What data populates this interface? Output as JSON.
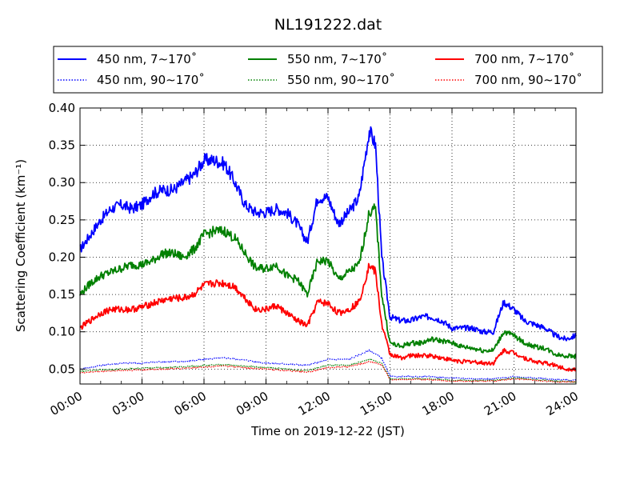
{
  "chart_data": {
    "type": "line",
    "title": "NL191222.dat",
    "xlabel": "Time on 2019-12-22 (JST)",
    "ylabel": "Scattering Coefficient (km⁻¹)",
    "x_tick_labels": [
      "00:00",
      "03:00",
      "06:00",
      "09:00",
      "12:00",
      "15:00",
      "18:00",
      "21:00",
      "24:00"
    ],
    "x_tick_hours": [
      0,
      3,
      6,
      9,
      12,
      15,
      18,
      21,
      24
    ],
    "y_tick_labels": [
      "0.05",
      "0.10",
      "0.15",
      "0.20",
      "0.25",
      "0.30",
      "0.35",
      "0.40"
    ],
    "xlim": [
      0,
      24
    ],
    "ylim": [
      0.03,
      0.4
    ],
    "grid": true,
    "legend_position": "top",
    "series": [
      {
        "name": "450 nm, 7∼170˚",
        "color": "#0000ff",
        "style": "solid",
        "x": [
          0,
          0.5,
          1,
          1.5,
          2,
          2.5,
          3,
          3.5,
          4,
          4.5,
          5,
          5.5,
          6,
          6.5,
          7,
          7.5,
          8,
          8.5,
          9,
          9.5,
          10,
          10.5,
          11,
          11.5,
          12,
          12.5,
          13,
          13.5,
          14,
          14.3,
          14.6,
          15,
          15.5,
          16,
          16.5,
          17,
          17.5,
          18,
          18.5,
          19,
          19.5,
          20,
          20.5,
          21,
          21.5,
          22,
          22.5,
          23,
          23.5,
          24
        ],
        "y": [
          0.21,
          0.23,
          0.25,
          0.265,
          0.27,
          0.265,
          0.27,
          0.285,
          0.29,
          0.29,
          0.3,
          0.31,
          0.33,
          0.33,
          0.325,
          0.3,
          0.27,
          0.26,
          0.26,
          0.265,
          0.26,
          0.245,
          0.22,
          0.28,
          0.28,
          0.245,
          0.26,
          0.28,
          0.37,
          0.35,
          0.2,
          0.12,
          0.115,
          0.115,
          0.12,
          0.12,
          0.115,
          0.105,
          0.105,
          0.105,
          0.1,
          0.1,
          0.14,
          0.13,
          0.115,
          0.11,
          0.105,
          0.095,
          0.09,
          0.095
        ]
      },
      {
        "name": "450 nm, 90∼170˚",
        "color": "#0000ff",
        "style": "dotted",
        "x": [
          0,
          1,
          2,
          3,
          4,
          5,
          6,
          7,
          8,
          9,
          10,
          11,
          12,
          13,
          14,
          14.6,
          15,
          16,
          17,
          18,
          19,
          20,
          21,
          22,
          23,
          24
        ],
        "y": [
          0.05,
          0.055,
          0.058,
          0.058,
          0.06,
          0.06,
          0.063,
          0.065,
          0.062,
          0.058,
          0.057,
          0.055,
          0.063,
          0.063,
          0.075,
          0.065,
          0.04,
          0.04,
          0.04,
          0.038,
          0.037,
          0.037,
          0.04,
          0.038,
          0.036,
          0.035
        ]
      },
      {
        "name": "550 nm, 7∼170˚",
        "color": "#008000",
        "style": "solid",
        "x": [
          0,
          0.5,
          1,
          1.5,
          2,
          2.5,
          3,
          3.5,
          4,
          4.5,
          5,
          5.5,
          6,
          6.5,
          7,
          7.5,
          8,
          8.5,
          9,
          9.5,
          10,
          10.5,
          11,
          11.5,
          12,
          12.5,
          13,
          13.5,
          14,
          14.3,
          14.6,
          15,
          15.5,
          16,
          16.5,
          17,
          17.5,
          18,
          18.5,
          19,
          19.5,
          20,
          20.5,
          21,
          21.5,
          22,
          22.5,
          23,
          23.5,
          24
        ],
        "y": [
          0.15,
          0.165,
          0.175,
          0.18,
          0.185,
          0.19,
          0.19,
          0.195,
          0.205,
          0.205,
          0.2,
          0.21,
          0.23,
          0.235,
          0.235,
          0.225,
          0.205,
          0.185,
          0.185,
          0.19,
          0.175,
          0.17,
          0.15,
          0.195,
          0.195,
          0.17,
          0.18,
          0.19,
          0.26,
          0.265,
          0.15,
          0.085,
          0.08,
          0.085,
          0.085,
          0.09,
          0.088,
          0.085,
          0.08,
          0.078,
          0.075,
          0.075,
          0.1,
          0.095,
          0.085,
          0.08,
          0.078,
          0.07,
          0.068,
          0.067
        ]
      },
      {
        "name": "550 nm, 90∼170˚",
        "color": "#008000",
        "style": "dotted",
        "x": [
          0,
          1,
          2,
          3,
          4,
          5,
          6,
          7,
          8,
          9,
          10,
          11,
          12,
          13,
          14,
          14.6,
          15,
          16,
          17,
          18,
          19,
          20,
          21,
          22,
          23,
          24
        ],
        "y": [
          0.047,
          0.049,
          0.05,
          0.051,
          0.052,
          0.053,
          0.055,
          0.056,
          0.054,
          0.052,
          0.05,
          0.048,
          0.055,
          0.055,
          0.063,
          0.058,
          0.037,
          0.037,
          0.037,
          0.035,
          0.035,
          0.035,
          0.038,
          0.036,
          0.034,
          0.033
        ]
      },
      {
        "name": "700 nm, 7∼170˚",
        "color": "#ff0000",
        "style": "solid",
        "x": [
          0,
          0.5,
          1,
          1.5,
          2,
          2.5,
          3,
          3.5,
          4,
          4.5,
          5,
          5.5,
          6,
          6.5,
          7,
          7.5,
          8,
          8.5,
          9,
          9.5,
          10,
          10.5,
          11,
          11.5,
          12,
          12.5,
          13,
          13.5,
          14,
          14.3,
          14.6,
          15,
          15.5,
          16,
          16.5,
          17,
          17.5,
          18,
          18.5,
          19,
          19.5,
          20,
          20.5,
          21,
          21.5,
          22,
          22.5,
          23,
          23.5,
          24
        ],
        "y": [
          0.105,
          0.115,
          0.125,
          0.13,
          0.13,
          0.13,
          0.133,
          0.138,
          0.142,
          0.145,
          0.145,
          0.15,
          0.162,
          0.165,
          0.165,
          0.16,
          0.145,
          0.13,
          0.13,
          0.135,
          0.125,
          0.115,
          0.108,
          0.14,
          0.138,
          0.125,
          0.13,
          0.14,
          0.19,
          0.18,
          0.11,
          0.07,
          0.065,
          0.068,
          0.068,
          0.068,
          0.065,
          0.062,
          0.06,
          0.06,
          0.058,
          0.058,
          0.075,
          0.072,
          0.065,
          0.06,
          0.058,
          0.055,
          0.05,
          0.05
        ]
      },
      {
        "name": "700 nm, 90∼170˚",
        "color": "#ff0000",
        "style": "dotted",
        "x": [
          0,
          1,
          2,
          3,
          4,
          5,
          6,
          7,
          8,
          9,
          10,
          11,
          12,
          13,
          14,
          14.6,
          15,
          16,
          17,
          18,
          19,
          20,
          21,
          22,
          23,
          24
        ],
        "y": [
          0.045,
          0.047,
          0.048,
          0.049,
          0.05,
          0.051,
          0.053,
          0.054,
          0.052,
          0.05,
          0.048,
          0.046,
          0.052,
          0.053,
          0.06,
          0.056,
          0.036,
          0.036,
          0.036,
          0.034,
          0.034,
          0.034,
          0.037,
          0.035,
          0.033,
          0.033
        ]
      }
    ]
  }
}
